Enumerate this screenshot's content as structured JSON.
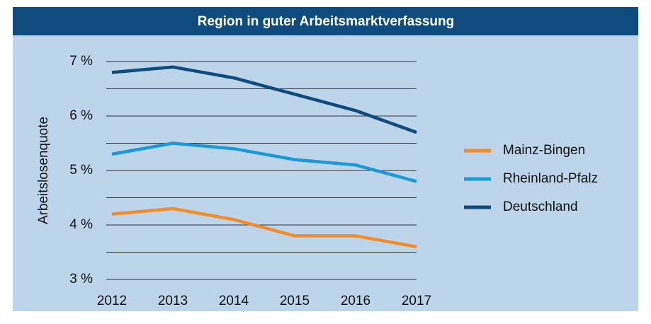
{
  "chart_data": {
    "type": "line",
    "title": "Region in guter Arbeitsmarktverfassung",
    "y_label": "Arbeitslosenquote",
    "categories": [
      "2012",
      "2013",
      "2014",
      "2015",
      "2016",
      "2017"
    ],
    "series": [
      {
        "name": "Mainz-Bingen",
        "color": "#f28c28",
        "values": [
          4.2,
          4.3,
          4.1,
          3.8,
          3.8,
          3.6
        ]
      },
      {
        "name": "Rheinland-Pfalz",
        "color": "#1b9ad6",
        "values": [
          5.3,
          5.5,
          5.4,
          5.2,
          5.1,
          4.8
        ]
      },
      {
        "name": "Deutschland",
        "color": "#0f4c7d",
        "values": [
          6.8,
          6.9,
          6.7,
          6.4,
          6.1,
          5.7
        ]
      }
    ],
    "ylim": [
      3,
      7
    ],
    "yticks": [
      {
        "value": 3,
        "label": "3 %"
      },
      {
        "value": 4,
        "label": "4 %"
      },
      {
        "value": 5,
        "label": "5 %"
      },
      {
        "value": 6,
        "label": "6 %"
      },
      {
        "value": 7,
        "label": "7 %"
      }
    ],
    "yminorticks": [
      3.5,
      4.5,
      5.5,
      6.5
    ],
    "grid": true,
    "legend": "right"
  }
}
